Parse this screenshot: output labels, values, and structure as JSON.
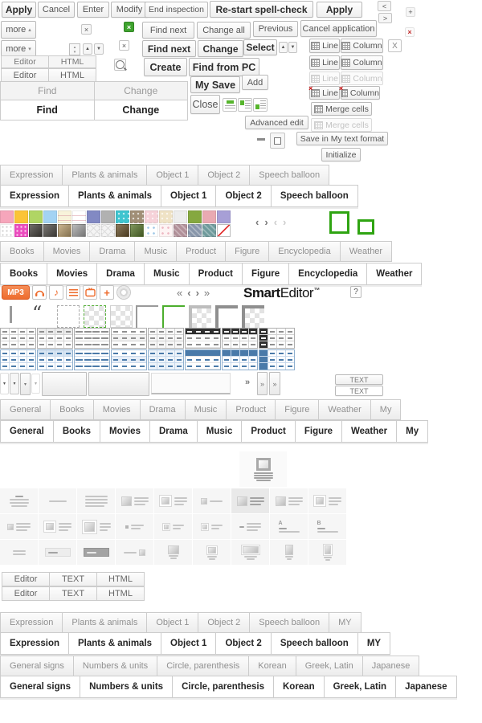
{
  "buttons": {
    "apply": "Apply",
    "cancel": "Cancel",
    "enter": "Enter",
    "modify": "Modify",
    "end_inspection": "End inspection",
    "restart_spellcheck": "Re-start spell-check",
    "apply_bold": "Apply",
    "more": "more",
    "find_next": "Find next",
    "change_all": "Change all",
    "previous": "Previous",
    "cancel_application": "Cancel application",
    "find_next_bold": "Find next",
    "change_bold": "Change",
    "select": "Select",
    "create": "Create",
    "find_from_pc": "Find from PC",
    "my_save": "My Save",
    "add": "Add",
    "close": "Close",
    "advanced_edit": "Advanced edit",
    "merge_cells": "Merge cells",
    "merge_cells_disabled": "Merge cells",
    "save_my_text": "Save in My text format",
    "initialize": "Initialize",
    "line": "Line",
    "column": "Column",
    "text_upper": "TEXT",
    "mp3": "MP3",
    "gray_x": "X"
  },
  "glyphs": {
    "close": "×",
    "plus": "+",
    "minus": "–",
    "up": "▲",
    "down": "▼",
    "up_sm": "▴",
    "down_sm": "▾",
    "chev_left": "‹",
    "chev_right": "›",
    "chev_dleft": "«",
    "chev_dright": "»",
    "lt": "<",
    "gt": ">",
    "quote": "“",
    "help": "?",
    "note": "♪"
  },
  "logo": {
    "brand_bold": "Smart",
    "brand_rest": "Editor",
    "tm": "™"
  },
  "tabs": {
    "editor_html": [
      "Editor",
      "HTML"
    ],
    "find_change": [
      "Find",
      "Change"
    ],
    "expression": [
      "Expression",
      "Plants & animals",
      "Object 1",
      "Object 2",
      "Speech balloon"
    ],
    "expression_my": [
      "Expression",
      "Plants & animals",
      "Object 1",
      "Object 2",
      "Speech balloon",
      "MY"
    ],
    "media": [
      "Books",
      "Movies",
      "Drama",
      "Music",
      "Product",
      "Figure",
      "Encyclopedia",
      "Weather"
    ],
    "general": [
      "General",
      "Books",
      "Movies",
      "Drama",
      "Music",
      "Product",
      "Figure",
      "Weather",
      "My"
    ],
    "editor_text_html": [
      "Editor",
      "TEXT",
      "HTML"
    ],
    "signs": [
      "General signs",
      "Numbers & units",
      "Circle, parenthesis",
      "Korean",
      "Greek, Latin",
      "Japanese"
    ]
  },
  "palette": {
    "row1": [
      {
        "color": "#f6a6bb"
      },
      {
        "color": "#fbc437"
      },
      {
        "color": "#b0d564"
      },
      {
        "color": "#a3d3f3"
      },
      {
        "color": "#f8f3da",
        "pattern": "hlines"
      },
      {
        "color": "#ffffff",
        "pattern": "hlines"
      },
      {
        "color": "#8289c3"
      },
      {
        "color": "#b1b1b1"
      },
      {
        "color": "#3ec4cf",
        "pattern": "dots"
      },
      {
        "color": "#a18f77",
        "pattern": "dots"
      },
      {
        "color": "#f6d2d9",
        "pattern": "dots"
      },
      {
        "color": "#efe2c5",
        "pattern": "dots"
      },
      {
        "color": "#ededed"
      },
      {
        "color": "#85a83f"
      },
      {
        "color": "#e9aab2"
      },
      {
        "color": "#a79fd6"
      }
    ],
    "row2": [
      {
        "color": "#ffffff",
        "pattern": "dots-gray"
      },
      {
        "color": "#ec4cbf",
        "pattern": "dots-light"
      },
      {
        "color": "#4a4742",
        "pattern": "photo"
      },
      {
        "color": "#55524d",
        "pattern": "photo"
      },
      {
        "color": "#bda273",
        "pattern": "photo"
      },
      {
        "color": "#a8a8a8",
        "pattern": "photo"
      },
      {
        "color": "#f4f4f4",
        "pattern": "cross"
      },
      {
        "color": "#f4f4f4",
        "pattern": "cross"
      },
      {
        "color": "#6d5731",
        "pattern": "photo"
      },
      {
        "color": "#5e7c33",
        "pattern": "photo"
      },
      {
        "color": "#ffffff",
        "pattern": "dots-blue"
      },
      {
        "color": "#fdf3f3",
        "pattern": "dots-pink"
      },
      {
        "color": "#b19099",
        "pattern": "stripes"
      },
      {
        "color": "#8896aa",
        "pattern": "stripes"
      },
      {
        "color": "#6f9b9c",
        "pattern": "stripes"
      },
      {
        "color": "#ffffff",
        "pattern": "none"
      }
    ]
  },
  "table_styles": {
    "variants": [
      "grid",
      "grid-tint",
      "hlines",
      "hlines-tint",
      "grid2",
      "header",
      "header-grid",
      "col-dark"
    ],
    "themes": [
      "gray",
      "blue"
    ]
  },
  "layout_icons": {
    "rows": [
      [
        "title-para",
        "line1",
        "para",
        "img-para",
        "imgf-para",
        "imgs-line",
        "img-para-sel",
        "img-para",
        "imgf-para"
      ],
      [
        "imgxs-para",
        "imgf-para",
        "imgf-para-lg",
        "dot-line",
        "imgxs-line",
        "imgxs-line",
        "dash-para",
        "letter-a",
        "letter-b"
      ],
      [
        "lines2",
        "banner",
        "banner-dark",
        "line-imgr",
        "img-cap",
        "imgf-cap",
        "imgf-wide-cap",
        "img-port-cap",
        "imgf-port-cap"
      ]
    ]
  },
  "colors": {
    "accent_green": "#2fa412",
    "accent_orange": "#ee6c2d",
    "table_blue": "#4a7aa9",
    "table_dark": "#2f2f2f",
    "danger_red": "#cc1111"
  }
}
